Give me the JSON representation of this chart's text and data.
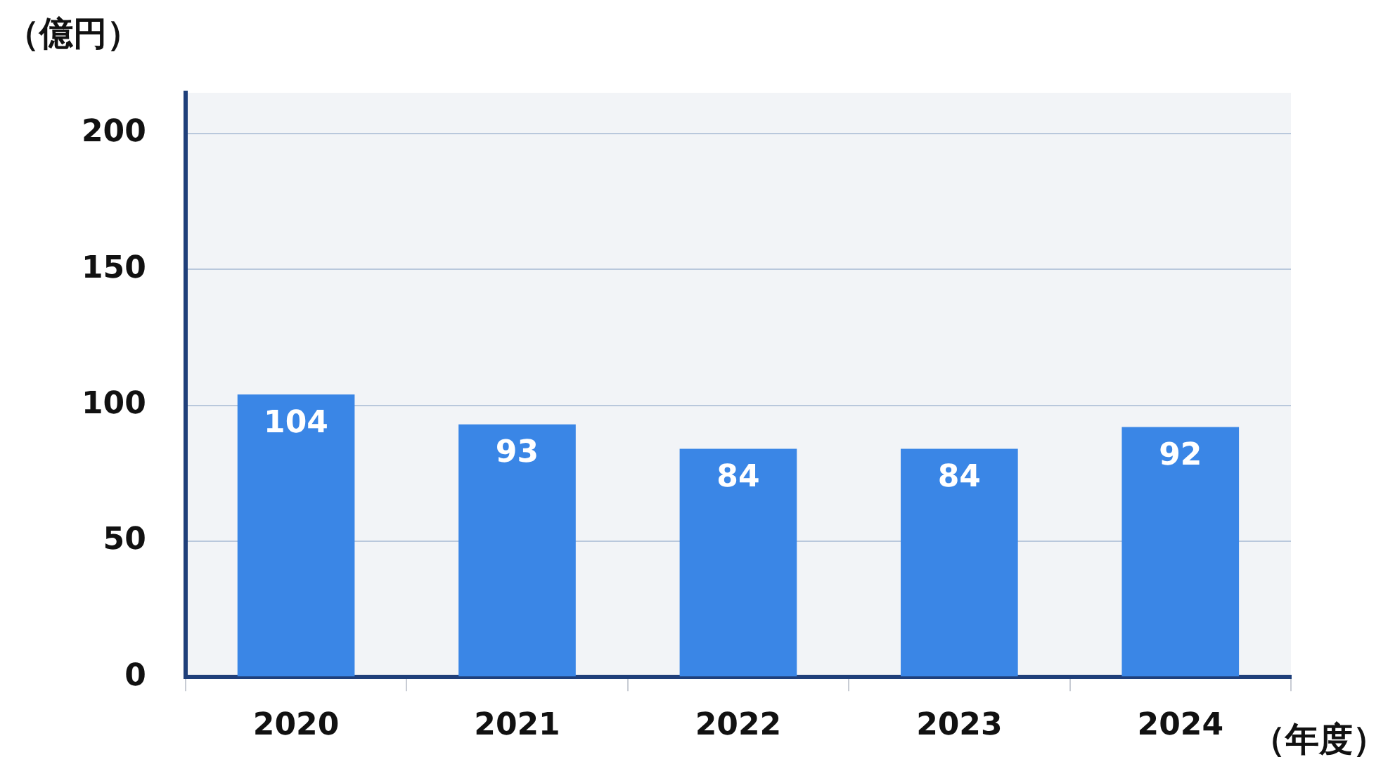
{
  "chart_data": {
    "type": "bar",
    "ylabel": "（億円）",
    "xlabel": "（年度）",
    "categories": [
      "2020",
      "2021",
      "2022",
      "2023",
      "2024"
    ],
    "values": [
      104,
      93,
      84,
      84,
      92
    ],
    "color": "#3a86e6",
    "ylim": [
      0,
      215
    ],
    "yticks": [
      0,
      50,
      100,
      150,
      200
    ],
    "grid": "y",
    "data_labels": true
  }
}
